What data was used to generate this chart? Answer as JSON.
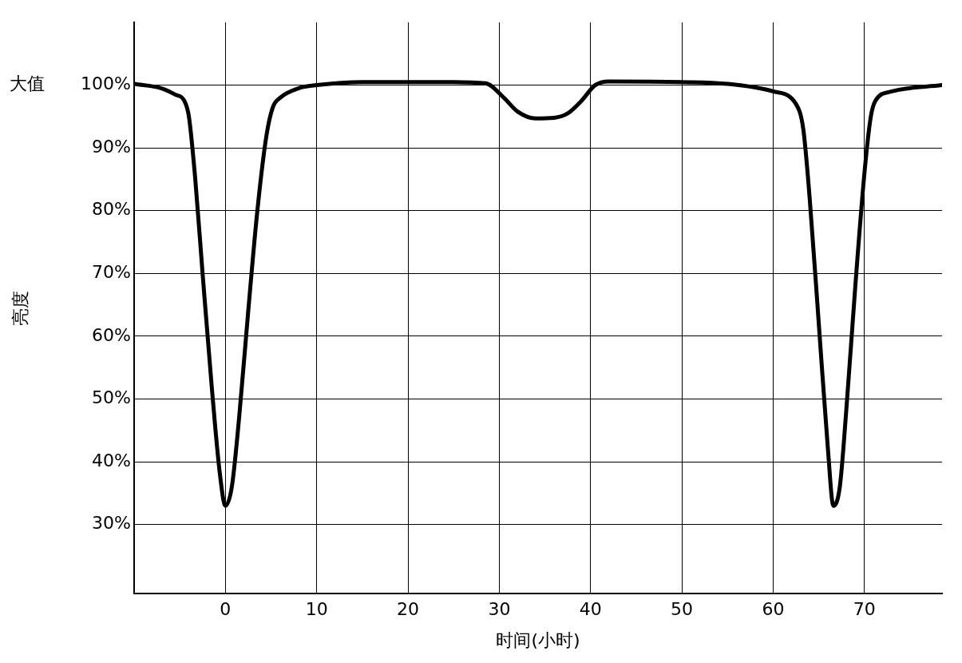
{
  "chart_data": {
    "type": "line",
    "xlabel": "时间(小时)",
    "ylabel": "亮度",
    "annotations": [
      "大值"
    ],
    "xlim": [
      -10,
      78.5
    ],
    "ylim": [
      19,
      110
    ],
    "xticks": [
      0,
      10,
      20,
      30,
      40,
      50,
      60,
      70
    ],
    "yticks": [
      {
        "value": 30,
        "label": "30%"
      },
      {
        "value": 40,
        "label": "40%"
      },
      {
        "value": 50,
        "label": "50%"
      },
      {
        "value": 60,
        "label": "60%"
      },
      {
        "value": 70,
        "label": "70%"
      },
      {
        "value": 80,
        "label": "80%"
      },
      {
        "value": 90,
        "label": "90%"
      },
      {
        "value": 100,
        "label": "100%"
      }
    ],
    "grid": true,
    "legend": false,
    "marker": "none",
    "line_style": "solid",
    "series": [
      {
        "color": "#000000",
        "x": [
          -10,
          -7,
          -5.5,
          -4.5,
          -4,
          -3.3,
          -2.5,
          -1.5,
          -0.6,
          0,
          0.7,
          1.5,
          2.5,
          3.5,
          4.5,
          5.2,
          6,
          8,
          10,
          15,
          20,
          25,
          28.5,
          30.5,
          32,
          34,
          36,
          37.5,
          39,
          40.5,
          42,
          50,
          55,
          60,
          62.5,
          63.3,
          64,
          65,
          66,
          66.6,
          67.3,
          68,
          69,
          70,
          70.7,
          71.2,
          73,
          78.5
        ],
        "values": [
          100.2,
          99.5,
          98.5,
          97.5,
          95,
          85,
          70,
          52,
          38,
          33,
          36,
          47,
          64,
          80,
          92,
          96.5,
          98,
          99.5,
          100,
          100.5,
          100.5,
          100.5,
          100.3,
          98,
          95.8,
          94.7,
          94.8,
          95.5,
          97.5,
          100,
          100.6,
          100.5,
          100.2,
          99,
          97,
          93,
          82,
          62,
          42,
          33,
          36,
          48,
          68,
          86,
          95,
          97.5,
          99,
          100
        ]
      }
    ]
  }
}
